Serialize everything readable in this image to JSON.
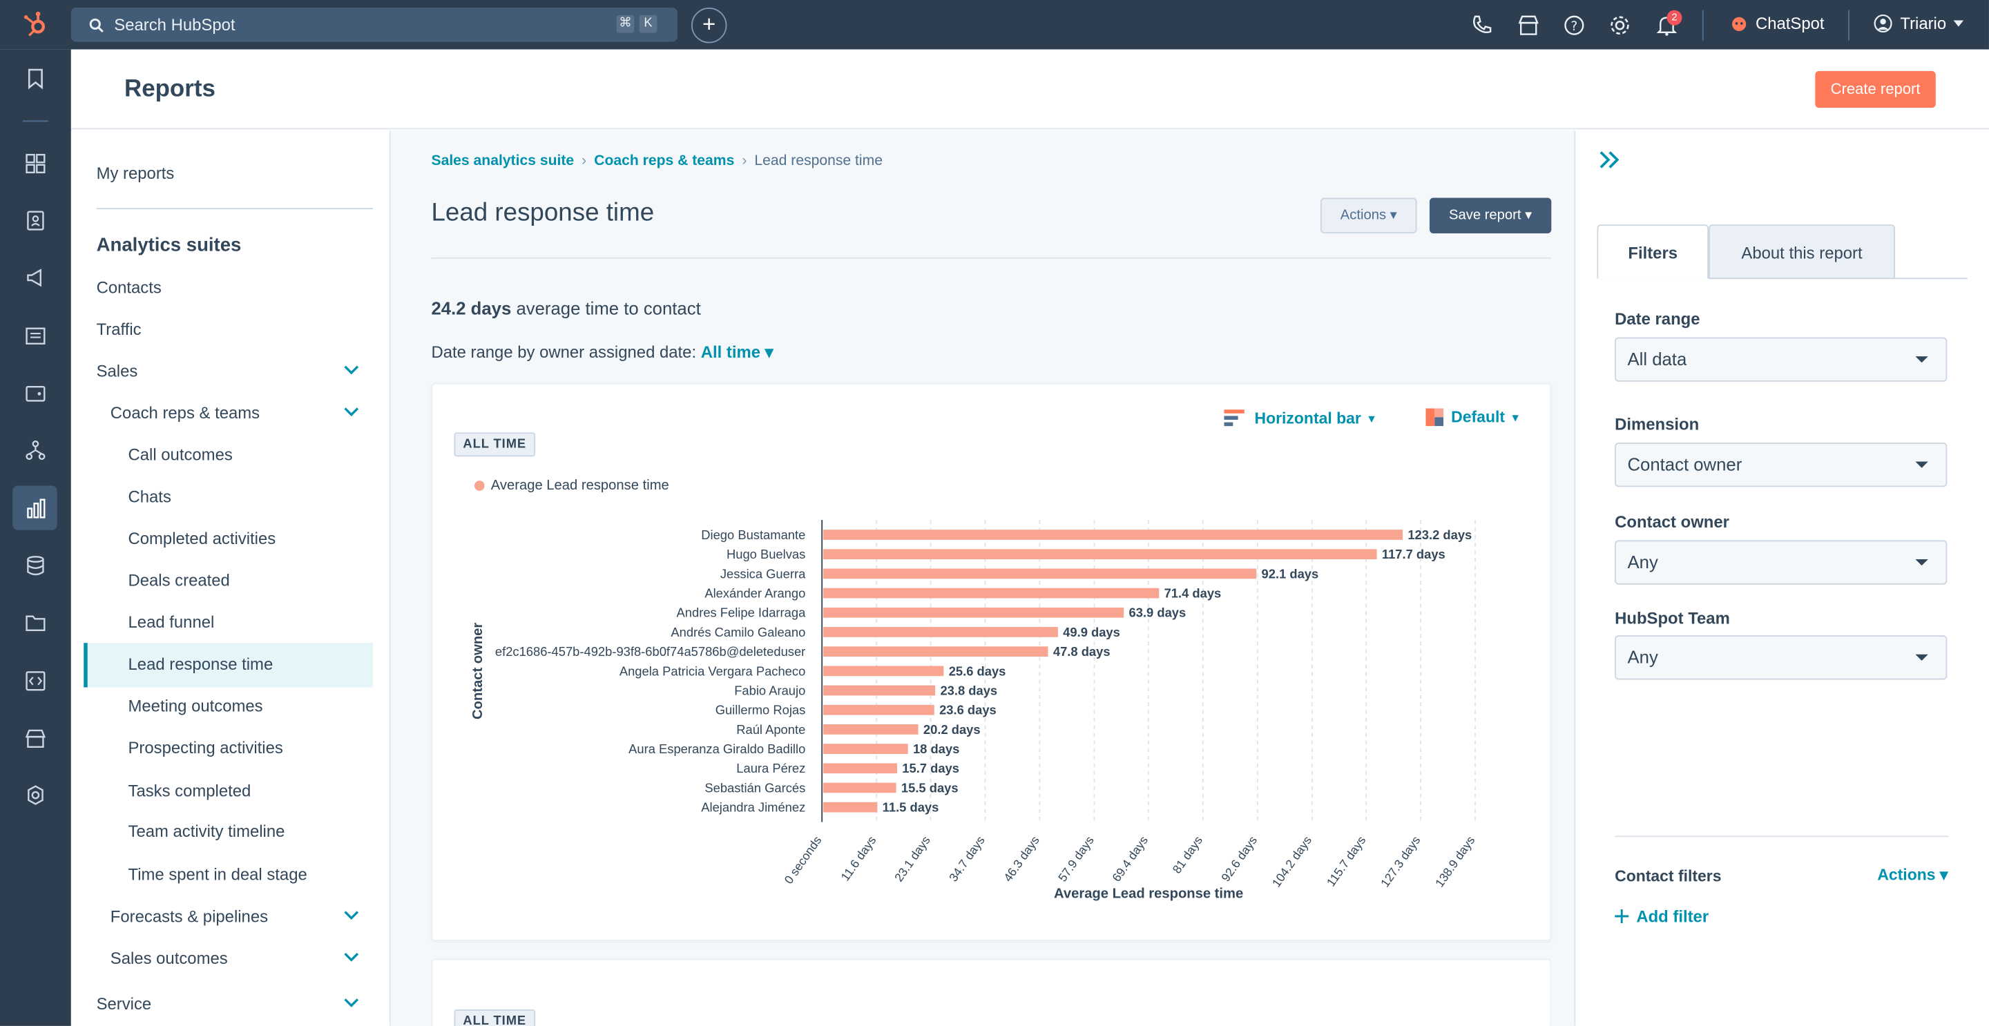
{
  "topbar": {
    "search_placeholder": "Search HubSpot",
    "shortcut_keys": [
      "⌘",
      "K"
    ],
    "notification_count": "2",
    "chatspot_label": "ChatSpot",
    "user_name": "Triario"
  },
  "page": {
    "title": "Reports",
    "create_button": "Create report"
  },
  "nav": {
    "my_reports": "My reports",
    "section_title": "Analytics suites",
    "items": {
      "contacts": "Contacts",
      "traffic": "Traffic",
      "sales": "Sales",
      "coach": "Coach reps & teams",
      "call_outcomes": "Call outcomes",
      "chats": "Chats",
      "completed_activities": "Completed activities",
      "deals_created": "Deals created",
      "lead_funnel": "Lead funnel",
      "lead_response_time": "Lead response time",
      "meeting_outcomes": "Meeting outcomes",
      "prospecting_activities": "Prospecting activities",
      "tasks_completed": "Tasks completed",
      "team_activity_timeline": "Team activity timeline",
      "time_spent": "Time spent in deal stage",
      "forecasts": "Forecasts & pipelines",
      "sales_outcomes": "Sales outcomes",
      "service": "Service"
    }
  },
  "main": {
    "breadcrumbs": [
      "Sales analytics suite",
      "Coach reps & teams",
      "Lead response time"
    ],
    "title": "Lead response time",
    "actions_button": "Actions",
    "save_button": "Save report",
    "avg_value": "24.2 days",
    "avg_text": "average time to contact",
    "date_range_label": "Date range by owner assigned date:",
    "date_range_value": "All time",
    "pill": "ALL TIME",
    "pill2": "ALL TIME",
    "chart_type_label": "Horizontal bar",
    "color_label": "Default"
  },
  "chart_data": {
    "type": "bar",
    "orientation": "horizontal",
    "title": "",
    "xlabel": "Average Lead response time",
    "ylabel": "Contact owner",
    "legend": "top-left",
    "grid": true,
    "color": "#f8a491",
    "series": [
      {
        "name": "Average Lead response time"
      }
    ],
    "categories": [
      "Diego Bustamante",
      "Hugo Buelvas",
      "Jessica Guerra",
      "Alexánder Arango",
      "Andres Felipe Idarraga",
      "Andrés Camilo Galeano",
      "ef2c1686-457b-492b-93f8-6b0f74a5786b@deleteduser",
      "Angela Patricia Vergara Pacheco",
      "Fabio Araujo",
      "Guillermo Rojas",
      "Raúl Aponte",
      "Aura Esperanza Giraldo Badillo",
      "Laura Pérez",
      "Sebastián Garcés",
      "Alejandra Jiménez"
    ],
    "values": [
      123.2,
      117.7,
      92.1,
      71.4,
      63.9,
      49.9,
      47.8,
      25.6,
      23.8,
      23.6,
      20.2,
      18,
      15.7,
      15.5,
      11.5
    ],
    "value_labels": [
      "123.2 days",
      "117.7 days",
      "92.1 days",
      "71.4 days",
      "63.9 days",
      "49.9 days",
      "47.8 days",
      "25.6 days",
      "23.8 days",
      "23.6 days",
      "20.2 days",
      "18 days",
      "15.7 days",
      "15.5 days",
      "11.5 days"
    ],
    "xlim": [
      0,
      138.9
    ],
    "ticks": [
      0,
      11.6,
      23.1,
      34.7,
      46.3,
      57.9,
      69.4,
      81,
      92.6,
      104.2,
      115.7,
      127.3,
      138.9
    ],
    "tick_labels": [
      "0 seconds",
      "11.6 days",
      "23.1 days",
      "34.7 days",
      "46.3 days",
      "57.9 days",
      "69.4 days",
      "81 days",
      "92.6 days",
      "104.2 days",
      "115.7 days",
      "127.3 days",
      "138.9 days"
    ]
  },
  "filters": {
    "tab_filters": "Filters",
    "tab_about": "About this report",
    "date_range_label": "Date range",
    "date_range_value": "All data",
    "dimension_label": "Dimension",
    "dimension_value": "Contact owner",
    "contact_owner_label": "Contact owner",
    "contact_owner_value": "Any",
    "team_label": "HubSpot Team",
    "team_value": "Any",
    "contact_filters_label": "Contact filters",
    "actions_label": "Actions",
    "add_filter_label": "Add filter"
  },
  "colors": {
    "topbar": "#2d3e50",
    "accent": "#ff7a59",
    "link": "#0091ae",
    "bar": "#f8a491"
  }
}
